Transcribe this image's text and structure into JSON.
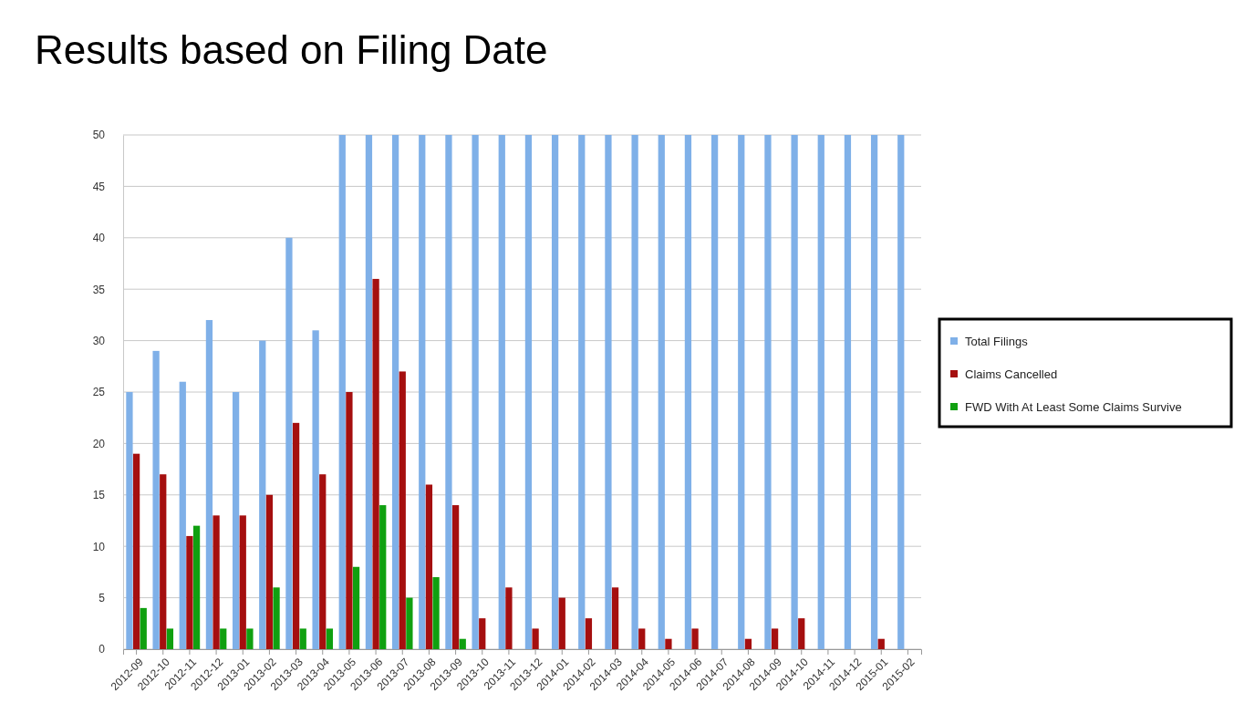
{
  "chart_data": {
    "type": "bar",
    "title": "Results based on Filing Date",
    "categories": [
      "2012-09",
      "2012-10",
      "2012-11",
      "2012-12",
      "2013-01",
      "2013-02",
      "2013-03",
      "2013-04",
      "2013-05",
      "2013-06",
      "2013-07",
      "2013-08",
      "2013-09",
      "2013-10",
      "2013-11",
      "2013-12",
      "2014-01",
      "2014-02",
      "2014-03",
      "2014-04",
      "2014-05",
      "2014-06",
      "2014-07",
      "2014-08",
      "2014-09",
      "2014-10",
      "2014-11",
      "2014-12",
      "2015-01",
      "2015-02"
    ],
    "series": [
      {
        "name": "Total Filings",
        "color": "#7fb0e8",
        "values": [
          25,
          29,
          26,
          32,
          25,
          30,
          40,
          31,
          50,
          50,
          50,
          50,
          50,
          50,
          50,
          50,
          50,
          50,
          50,
          50,
          50,
          50,
          50,
          50,
          50,
          50,
          50,
          50,
          50,
          50
        ]
      },
      {
        "name": "Claims Cancelled",
        "color": "#a50f0f",
        "values": [
          19,
          17,
          11,
          13,
          13,
          15,
          22,
          17,
          25,
          36,
          27,
          16,
          14,
          3,
          6,
          2,
          5,
          3,
          6,
          2,
          1,
          2,
          0,
          1,
          2,
          3,
          0,
          0,
          1,
          0
        ]
      },
      {
        "name": "FWD With At Least Some Claims Survive",
        "color": "#10a010",
        "values": [
          4,
          2,
          12,
          2,
          2,
          6,
          2,
          2,
          8,
          14,
          5,
          7,
          1,
          0,
          0,
          0,
          0,
          0,
          0,
          0,
          0,
          0,
          0,
          0,
          0,
          0,
          0,
          0,
          0,
          0
        ]
      }
    ],
    "ylim": [
      0,
      50
    ],
    "yticks": [
      0,
      5,
      10,
      15,
      20,
      25,
      30,
      35,
      40,
      45,
      50
    ],
    "grid": "y",
    "legend": "right"
  }
}
